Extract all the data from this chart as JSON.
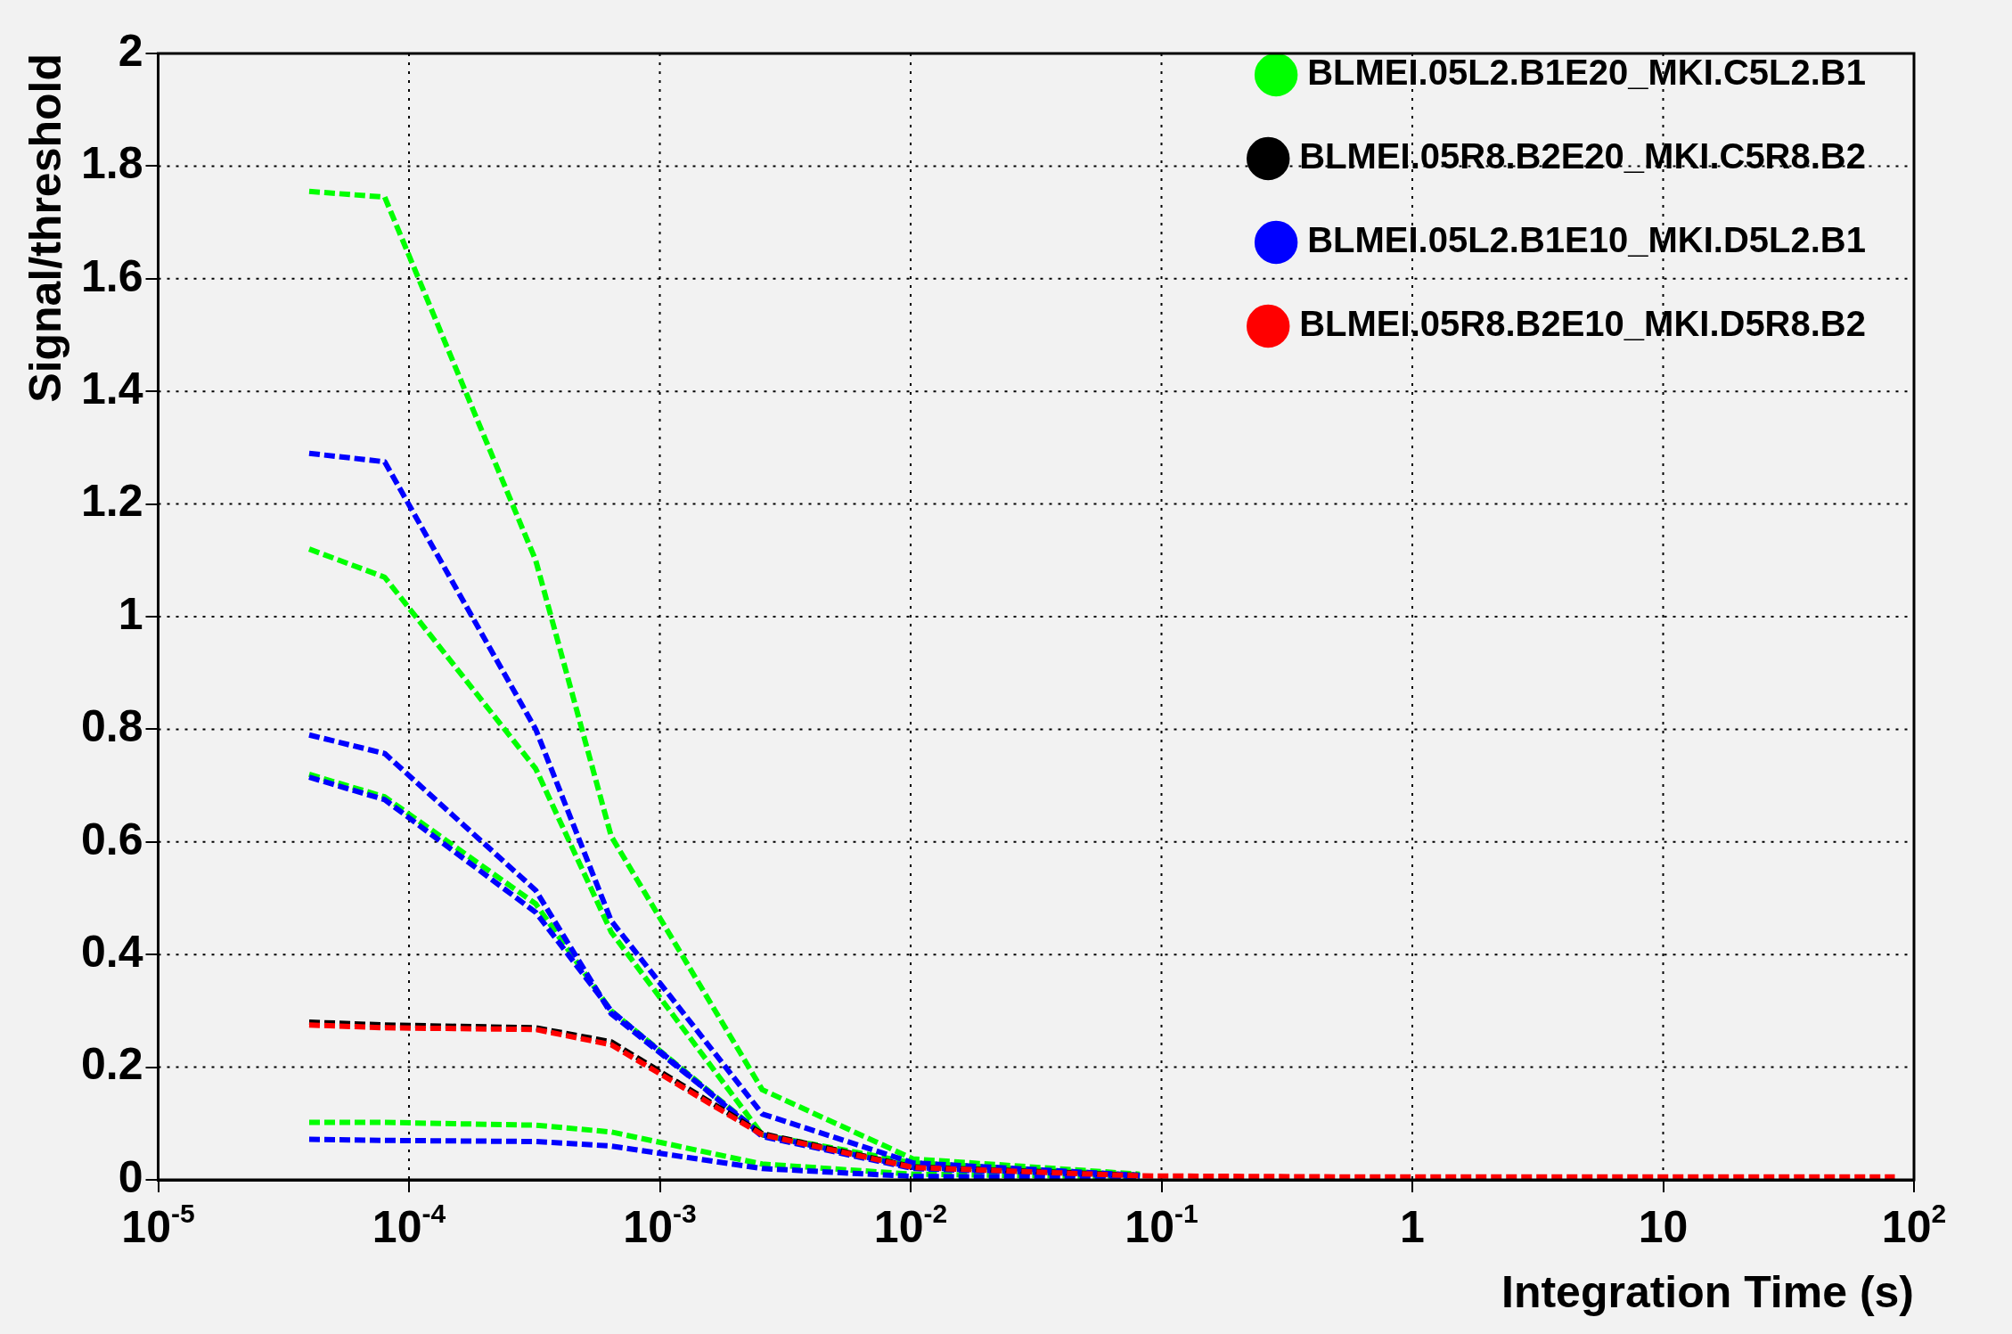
{
  "chart_data": {
    "type": "line",
    "xlabel": "Integration Time (s)",
    "ylabel": "Signal/threshold",
    "x": [
      4e-05,
      8e-05,
      0.00032,
      0.00064,
      0.00256,
      0.01024,
      0.08192,
      0.655,
      1.31,
      5.24,
      20.97,
      83.89
    ],
    "log": "x",
    "xlim": [
      1e-05,
      100
    ],
    "xticks": [
      {
        "value": 1e-05,
        "label": "10$^{-5}$"
      },
      {
        "value": 0.0001,
        "label": "10$^{-4}$"
      },
      {
        "value": 0.001,
        "label": "10$^{-3}$"
      },
      {
        "value": 0.01,
        "label": "10$^{-2}$"
      },
      {
        "value": 0.1,
        "label": "10$^{-1}$"
      },
      1,
      10,
      {
        "value": 100,
        "label": "10$^{2}$"
      }
    ],
    "ylim": [
      0,
      2
    ],
    "yticks": [
      0,
      0.2,
      0.4,
      0.6,
      0.8,
      1,
      1.2,
      1.4,
      1.6,
      1.8,
      2
    ],
    "grid": true,
    "legend": "top right",
    "line_style": "dashed",
    "series": [
      {
        "color": "#00ff00",
        "values": [
          1.12,
          1.07,
          0.73,
          0.44,
          0.08,
          0.03,
          0.008,
          null,
          null,
          null,
          null,
          null
        ]
      },
      {
        "color": "#00ff00",
        "values": [
          0.72,
          0.68,
          0.49,
          0.3,
          0.08,
          0.025,
          0.007,
          null,
          null,
          null,
          null,
          null
        ]
      },
      {
        "color": "#00ff00",
        "values": [
          0.102,
          0.102,
          0.097,
          0.085,
          0.028,
          0.01,
          0.005,
          null,
          null,
          null,
          null,
          null
        ]
      },
      {
        "color": "#0000ff",
        "values": [
          0.79,
          0.757,
          0.514,
          0.295,
          0.08,
          0.022,
          0.006,
          null,
          null,
          null,
          null,
          null
        ]
      },
      {
        "color": "#0000ff",
        "values": [
          0.715,
          0.675,
          0.475,
          0.3,
          0.077,
          0.02,
          0.006,
          null,
          null,
          null,
          null,
          null
        ]
      },
      {
        "color": "#0000ff",
        "values": [
          0.072,
          0.07,
          0.068,
          0.06,
          0.02,
          0.006,
          0.004,
          null,
          null,
          null,
          null,
          null
        ]
      },
      {
        "name": "BLMEI.05L2.B1E20_MKI.C5L2.B1",
        "color": "#00ff00",
        "values": [
          1.755,
          1.745,
          1.1,
          0.61,
          0.16,
          0.037,
          0.01,
          null,
          null,
          null,
          null,
          null
        ]
      },
      {
        "name": "BLMEI.05R8.B2E20_MKI.C5R8.B2",
        "color": "#000000",
        "values": [
          0.28,
          0.275,
          0.27,
          0.245,
          0.082,
          0.023,
          0.008,
          null,
          null,
          null,
          null,
          null
        ]
      },
      {
        "name": "BLMEI.05L2.B1E10_MKI.D5L2.B1",
        "color": "#0000ff",
        "values": [
          1.29,
          1.275,
          0.8,
          0.46,
          0.117,
          0.03,
          0.008,
          null,
          null,
          null,
          null,
          null
        ]
      },
      {
        "name": "BLMEI.05R8.B2E10_MKI.D5R8.B2",
        "color": "#ff0000",
        "values": [
          0.275,
          0.27,
          0.267,
          0.24,
          0.08,
          0.022,
          0.007,
          0.005,
          0.005,
          0.005,
          0.005,
          0.005
        ]
      }
    ]
  }
}
